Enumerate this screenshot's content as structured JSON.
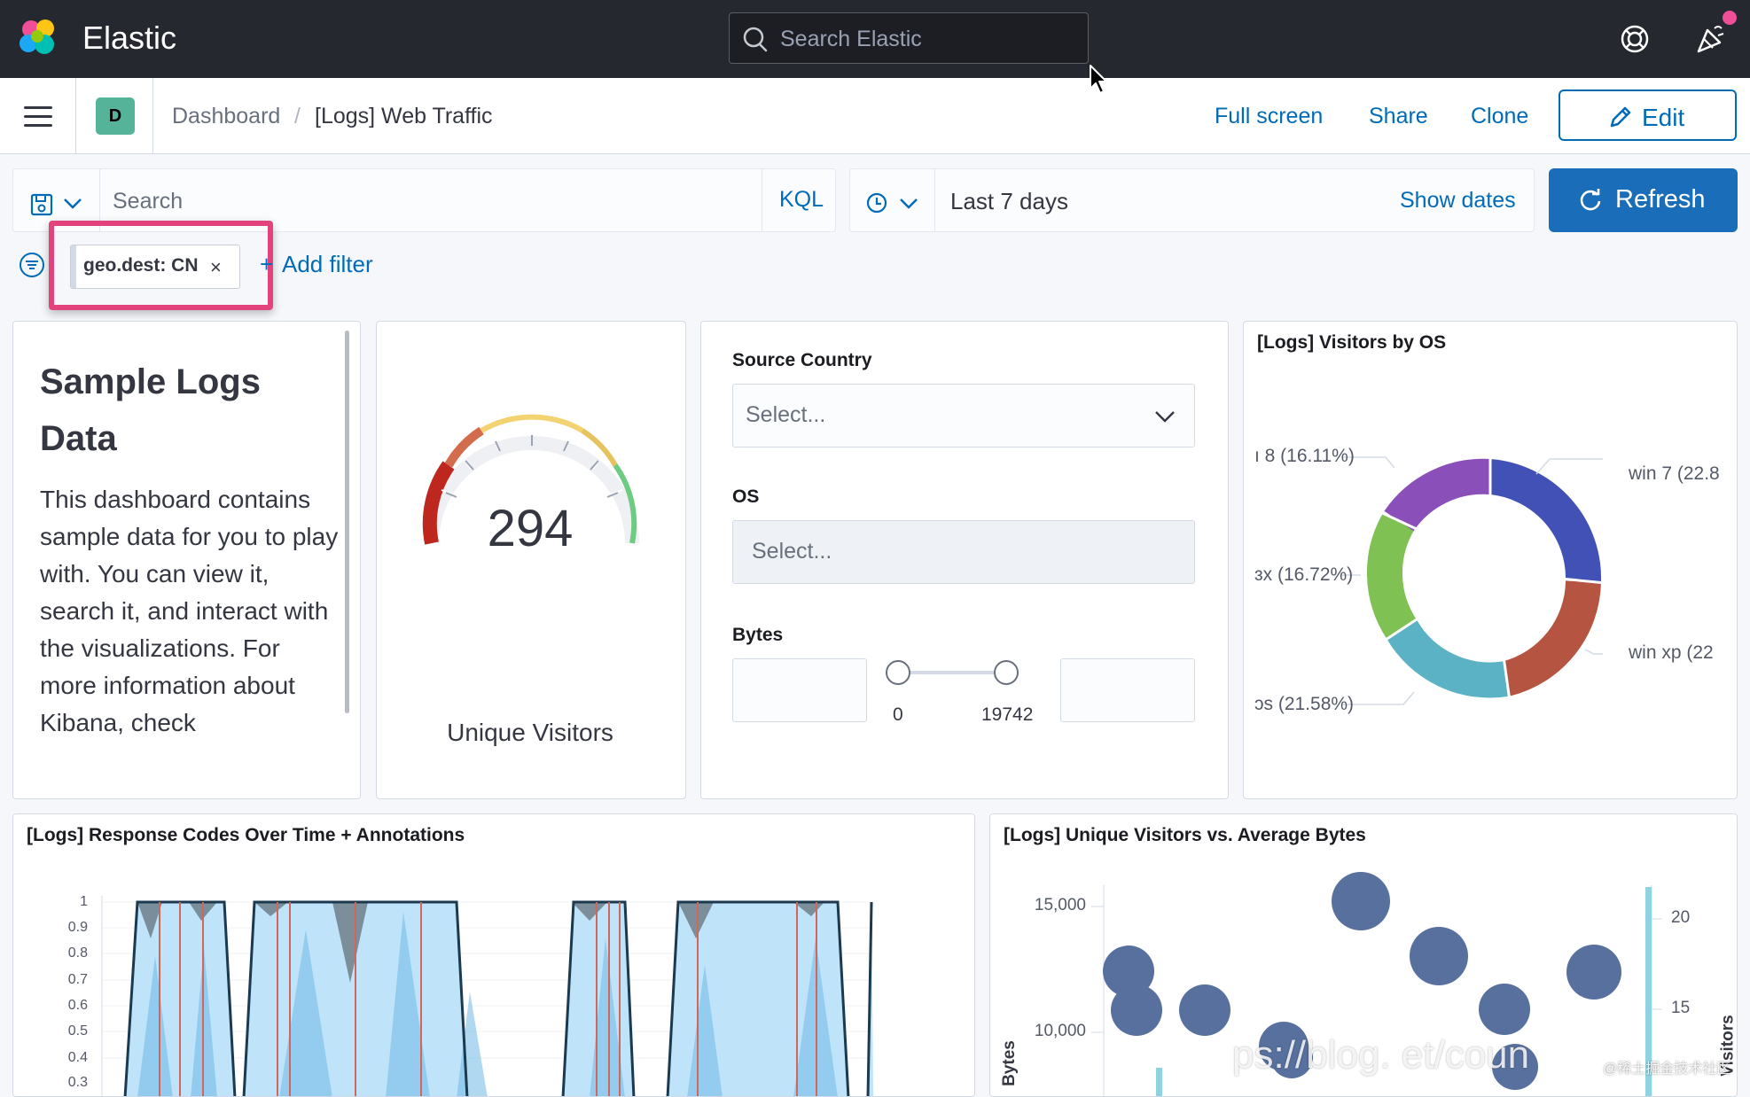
{
  "header": {
    "brand": "Elastic",
    "search_placeholder": "Search Elastic"
  },
  "subnav": {
    "space_initial": "D",
    "breadcrumbs": [
      "Dashboard",
      "[Logs] Web Traffic"
    ],
    "breadcrumb_separator": "/",
    "actions": {
      "full_screen": "Full screen",
      "share": "Share",
      "clone": "Clone",
      "edit": "Edit"
    }
  },
  "query": {
    "placeholder": "Search",
    "language": "KQL",
    "date_range": "Last 7 days",
    "show_dates": "Show dates",
    "refresh": "Refresh"
  },
  "filters": {
    "pills": [
      {
        "label": "geo.dest: CN",
        "remove": "×"
      }
    ],
    "add_filter": "Add filter",
    "add_prefix": "+"
  },
  "markdown_panel": {
    "title": "Sample Logs Data",
    "body": "This dashboard contains sample data for you to play with. You can view it, search it, and interact with the visualizations. For more information about Kibana, check"
  },
  "gauge_panel": {
    "value": "294",
    "label": "Unique Visitors"
  },
  "controls_panel": {
    "source_country": {
      "label": "Source Country",
      "placeholder": "Select..."
    },
    "os": {
      "label": "OS",
      "placeholder": "Select..."
    },
    "bytes": {
      "label": "Bytes",
      "min": "0",
      "max": "19742"
    }
  },
  "os_panel": {
    "title": "[Logs] Visitors by OS",
    "legend": [
      {
        "label": "ı 8 (16.11%)",
        "color": "#9170b8"
      },
      {
        "label": "win 7 (22.8",
        "color": "#6092c0"
      },
      {
        "label": "ɜx (16.72%)",
        "color": "#54b399"
      },
      {
        "label": "win xp (22",
        "color": "#d36086"
      },
      {
        "label": "ɔs (21.58%)",
        "color": "#ca8eae"
      }
    ]
  },
  "response_panel": {
    "title": "[Logs] Response Codes Over Time + Annotations",
    "y_ticks": [
      "1",
      "0.9",
      "0.8",
      "0.7",
      "0.6",
      "0.5",
      "0.4",
      "0.3"
    ]
  },
  "visitors_panel": {
    "title": "[Logs] Unique Visitors vs. Average Bytes",
    "y_ticks_left": [
      "15,000",
      "10,000"
    ],
    "y_ticks_right": [
      "20",
      "15"
    ],
    "y_label_left": "Bytes",
    "y_label_right": "Visitors"
  },
  "watermark": {
    "url_fragment": "ps://blog.      et/coun",
    "credit": "@稀土掘金技术社区"
  },
  "colors": {
    "header_bg": "#25282f",
    "link": "#006bb8",
    "primary": "#1a6db8",
    "highlight": "#e2437c"
  }
}
